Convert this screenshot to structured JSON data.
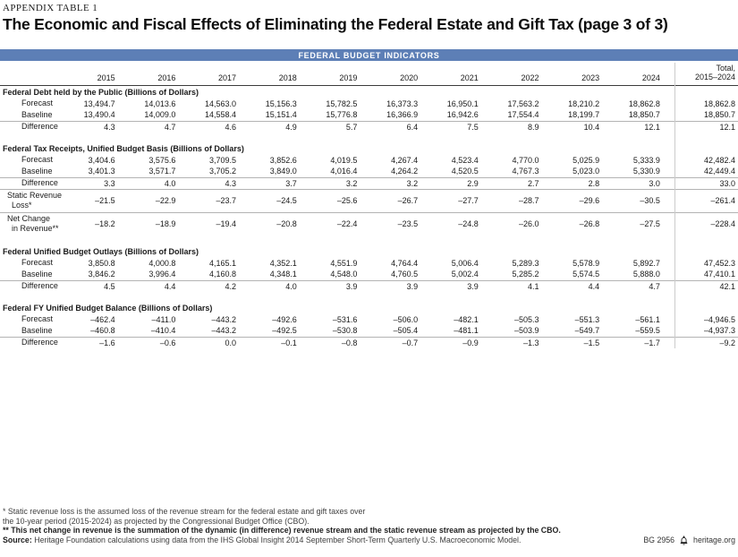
{
  "page": {
    "kicker": "APPENDIX TABLE 1",
    "title": "The Economic and Fiscal Effects of Eliminating the Federal Estate and Gift Tax (page 3 of 3)"
  },
  "band": {
    "title": "FEDERAL BUDGET INDICATORS",
    "color": "#5d7fb6"
  },
  "table": {
    "years": [
      "2015",
      "2016",
      "2017",
      "2018",
      "2019",
      "2020",
      "2021",
      "2022",
      "2023",
      "2024"
    ],
    "total_header_line1": "Total,",
    "total_header_line2": "2015–2024",
    "sections": [
      {
        "title": "Federal Debt held by the Public (Billions of Dollars)",
        "rows": [
          {
            "label_lines": [
              "Forecast"
            ],
            "rule": false,
            "values": [
              "13,494.7",
              "14,013.6",
              "14,563.0",
              "15,156.3",
              "15,782.5",
              "16,373.3",
              "16,950.1",
              "17,563.2",
              "18,210.2",
              "18,862.8"
            ],
            "total": "18,862.8"
          },
          {
            "label_lines": [
              "Baseline"
            ],
            "rule": false,
            "values": [
              "13,490.4",
              "14,009.0",
              "14,558.4",
              "15,151.4",
              "15,776.8",
              "16,366.9",
              "16,942.6",
              "17,554.4",
              "18,199.7",
              "18,850.7"
            ],
            "total": "18,850.7"
          },
          {
            "label_lines": [
              "Difference"
            ],
            "rule": true,
            "values": [
              "4.3",
              "4.7",
              "4.6",
              "4.9",
              "5.7",
              "6.4",
              "7.5",
              "8.9",
              "10.4",
              "12.1"
            ],
            "total": "12.1"
          }
        ]
      },
      {
        "title": "Federal Tax Receipts, Unified Budget Basis (Billions of Dollars)",
        "rows": [
          {
            "label_lines": [
              "Forecast"
            ],
            "rule": false,
            "values": [
              "3,404.6",
              "3,575.6",
              "3,709.5",
              "3,852.6",
              "4,019.5",
              "4,267.4",
              "4,523.4",
              "4,770.0",
              "5,025.9",
              "5,333.9"
            ],
            "total": "42,482.4"
          },
          {
            "label_lines": [
              "Baseline"
            ],
            "rule": false,
            "values": [
              "3,401.3",
              "3,571.7",
              "3,705.2",
              "3,849.0",
              "4,016.4",
              "4,264.2",
              "4,520.5",
              "4,767.3",
              "5,023.0",
              "5,330.9"
            ],
            "total": "42,449.4"
          },
          {
            "label_lines": [
              "Difference"
            ],
            "rule": true,
            "values": [
              "3.3",
              "4.0",
              "4.3",
              "3.7",
              "3.2",
              "3.2",
              "2.9",
              "2.7",
              "2.8",
              "3.0"
            ],
            "total": "33.0"
          },
          {
            "label_lines": [
              "Static Revenue",
              "Loss*"
            ],
            "rule": true,
            "values": [
              "–21.5",
              "–22.9",
              "–23.7",
              "–24.5",
              "–25.6",
              "–26.7",
              "–27.7",
              "–28.7",
              "–29.6",
              "–30.5"
            ],
            "total": "–261.4"
          },
          {
            "label_lines": [
              "Net Change",
              "in Revenue**"
            ],
            "rule": true,
            "values": [
              "–18.2",
              "–18.9",
              "–19.4",
              "–20.8",
              "–22.4",
              "–23.5",
              "–24.8",
              "–26.0",
              "–26.8",
              "–27.5"
            ],
            "total": "–228.4"
          }
        ]
      },
      {
        "title": "Federal Unified Budget Outlays (Billions of Dollars)",
        "rows": [
          {
            "label_lines": [
              "Forecast"
            ],
            "rule": false,
            "values": [
              "3,850.8",
              "4,000.8",
              "4,165.1",
              "4,352.1",
              "4,551.9",
              "4,764.4",
              "5,006.4",
              "5,289.3",
              "5,578.9",
              "5,892.7"
            ],
            "total": "47,452.3"
          },
          {
            "label_lines": [
              "Baseline"
            ],
            "rule": false,
            "values": [
              "3,846.2",
              "3,996.4",
              "4,160.8",
              "4,348.1",
              "4,548.0",
              "4,760.5",
              "5,002.4",
              "5,285.2",
              "5,574.5",
              "5,888.0"
            ],
            "total": "47,410.1"
          },
          {
            "label_lines": [
              "Difference"
            ],
            "rule": true,
            "values": [
              "4.5",
              "4.4",
              "4.2",
              "4.0",
              "3.9",
              "3.9",
              "3.9",
              "4.1",
              "4.4",
              "4.7"
            ],
            "total": "42.1"
          }
        ]
      },
      {
        "title": "Federal FY Unified Budget Balance (Billions of Dollars)",
        "rows": [
          {
            "label_lines": [
              "Forecast"
            ],
            "rule": false,
            "values": [
              "–462.4",
              "–411.0",
              "–443.2",
              "–492.6",
              "–531.6",
              "–506.0",
              "–482.1",
              "–505.3",
              "–551.3",
              "–561.1"
            ],
            "total": "–4,946.5"
          },
          {
            "label_lines": [
              "Baseline"
            ],
            "rule": false,
            "values": [
              "–460.8",
              "–410.4",
              "–443.2",
              "–492.5",
              "–530.8",
              "–505.4",
              "–481.1",
              "–503.9",
              "–549.7",
              "–559.5"
            ],
            "total": "–4,937.3"
          },
          {
            "label_lines": [
              "Difference"
            ],
            "rule": true,
            "values": [
              "–1.6",
              "–0.6",
              "0.0",
              "–0.1",
              "–0.8",
              "–0.7",
              "–0.9",
              "–1.3",
              "–1.5",
              "–1.7"
            ],
            "total": "–9.2"
          }
        ]
      }
    ]
  },
  "footnotes": {
    "note1_line1": "* Static revenue loss is the assumed loss of the revenue stream for the federal estate and gift taxes over",
    "note1_line2": "the 10-year period (2015-2024) as projected by the Congressional Budget Office (CBO).",
    "note2": "** This net change in revenue is the summation of the dynamic (in difference) revenue stream and the static revenue stream as projected by the CBO.",
    "source_label": "Source:",
    "source_text": "Heritage Foundation calculations using data from the IHS Global Insight 2014 September Short-Term Quarterly U.S. Macroeconomic Model."
  },
  "footer": {
    "doc_id": "BG 2956",
    "site": "heritage.org"
  }
}
